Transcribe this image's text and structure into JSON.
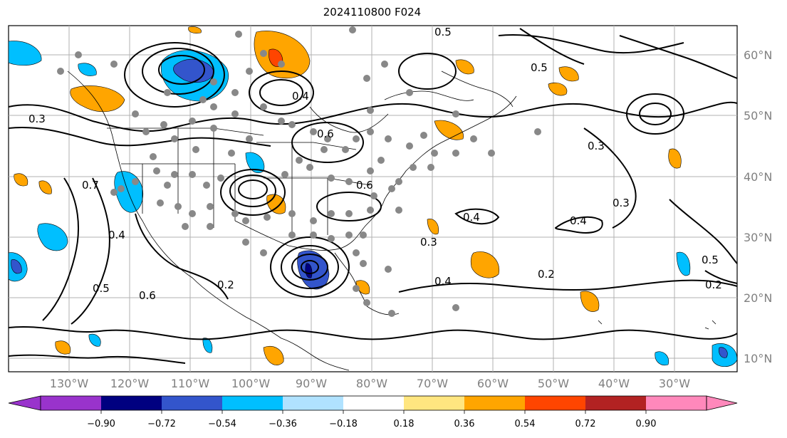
{
  "title": "2024110800 F024",
  "lon_ticks": [
    "130°W",
    "120°W",
    "110°W",
    "100°W",
    "90°W",
    "80°W",
    "70°W",
    "60°W",
    "50°W",
    "40°W",
    "30°W"
  ],
  "lat_ticks": [
    "60°N",
    "50°N",
    "40°N",
    "30°N",
    "20°N",
    "10°N"
  ],
  "colorbar": {
    "labels": [
      "−0.90",
      "−0.72",
      "−0.54",
      "−0.36",
      "−0.18",
      "0.18",
      "0.36",
      "0.54",
      "0.72",
      "0.90"
    ],
    "colors": [
      "#9933cc",
      "#000080",
      "#3355cc",
      "#00bfff",
      "#b0e2ff",
      "#ffffff",
      "#ffe680",
      "#ffa500",
      "#ff4500",
      "#b22222",
      "#ff88bb"
    ]
  },
  "contour_labels": [
    "0.3",
    "0.4",
    "0.5",
    "0.6",
    "0.7",
    "0.2",
    "0.3",
    "0.4",
    "0.5",
    "0.4",
    "0.3",
    "0.2",
    "0.5",
    "0.6",
    "0.4",
    "0.3",
    "0.4",
    "0.2",
    "0.6",
    "0.5"
  ]
}
